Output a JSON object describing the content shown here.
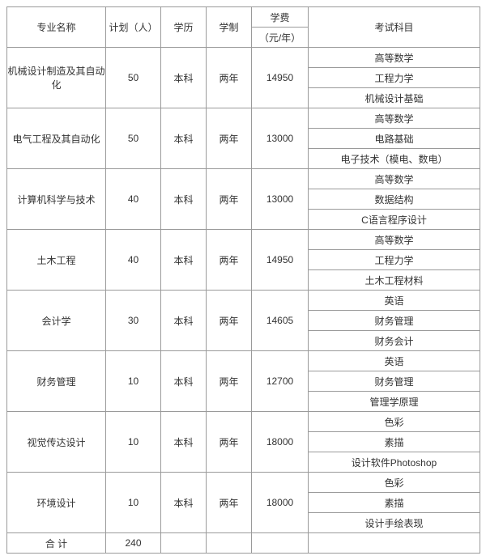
{
  "header": {
    "major": "专业名称",
    "plan": "计划（人）",
    "degree": "学历",
    "duration": "学制",
    "fee_top": "学费",
    "fee_bottom": "（元/年）",
    "subjects": "考试科目"
  },
  "rows": [
    {
      "major": "机械设计制造及其自动化",
      "plan": "50",
      "degree": "本科",
      "duration": "两年",
      "fee": "14950",
      "subjects": [
        "高等数学",
        "工程力学",
        "机械设计基础"
      ]
    },
    {
      "major": "电气工程及其自动化",
      "plan": "50",
      "degree": "本科",
      "duration": "两年",
      "fee": "13000",
      "subjects": [
        "高等数学",
        "电路基础",
        "电子技术（模电、数电）"
      ]
    },
    {
      "major": "计算机科学与技术",
      "plan": "40",
      "degree": "本科",
      "duration": "两年",
      "fee": "13000",
      "subjects": [
        "高等数学",
        "数据结构",
        "C语言程序设计"
      ]
    },
    {
      "major": "土木工程",
      "plan": "40",
      "degree": "本科",
      "duration": "两年",
      "fee": "14950",
      "subjects": [
        "高等数学",
        "工程力学",
        "土木工程材料"
      ]
    },
    {
      "major": "会计学",
      "plan": "30",
      "degree": "本科",
      "duration": "两年",
      "fee": "14605",
      "subjects": [
        "英语",
        "财务管理",
        "财务会计"
      ]
    },
    {
      "major": "财务管理",
      "plan": "10",
      "degree": "本科",
      "duration": "两年",
      "fee": "12700",
      "subjects": [
        "英语",
        "财务管理",
        "管理学原理"
      ]
    },
    {
      "major": "视觉传达设计",
      "plan": "10",
      "degree": "本科",
      "duration": "两年",
      "fee": "18000",
      "subjects": [
        "色彩",
        "素描",
        "设计软件Photoshop"
      ]
    },
    {
      "major": "环境设计",
      "plan": "10",
      "degree": "本科",
      "duration": "两年",
      "fee": "18000",
      "subjects": [
        "色彩",
        "素描",
        "设计手绘表现"
      ]
    }
  ],
  "total": {
    "label": "合 计",
    "plan": "240"
  }
}
